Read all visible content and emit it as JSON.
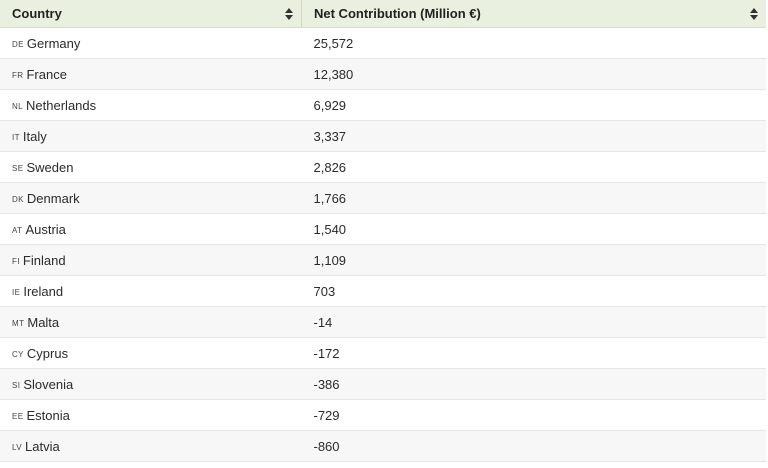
{
  "table": {
    "headers": {
      "country": "Country",
      "contribution": "Net Contribution (Million €)"
    },
    "rows": [
      {
        "code": "DE",
        "country": "Germany",
        "value": "25,572"
      },
      {
        "code": "FR",
        "country": "France",
        "value": "12,380"
      },
      {
        "code": "NL",
        "country": "Netherlands",
        "value": "6,929"
      },
      {
        "code": "IT",
        "country": "Italy",
        "value": "3,337"
      },
      {
        "code": "SE",
        "country": "Sweden",
        "value": "2,826"
      },
      {
        "code": "DK",
        "country": "Denmark",
        "value": "1,766"
      },
      {
        "code": "AT",
        "country": "Austria",
        "value": "1,540"
      },
      {
        "code": "FI",
        "country": "Finland",
        "value": "1,109"
      },
      {
        "code": "IE",
        "country": "Ireland",
        "value": "703"
      },
      {
        "code": "MT",
        "country": "Malta",
        "value": "-14"
      },
      {
        "code": "CY",
        "country": "Cyprus",
        "value": "-172"
      },
      {
        "code": "SI",
        "country": "Slovenia",
        "value": "-386"
      },
      {
        "code": "EE",
        "country": "Estonia",
        "value": "-729"
      },
      {
        "code": "LV",
        "country": "Latvia",
        "value": "-860"
      }
    ]
  },
  "icons": {
    "sort": "sort-icon"
  },
  "colors": {
    "header_bg": "#e9f0df",
    "stripe_bg": "#f7f7f7"
  }
}
